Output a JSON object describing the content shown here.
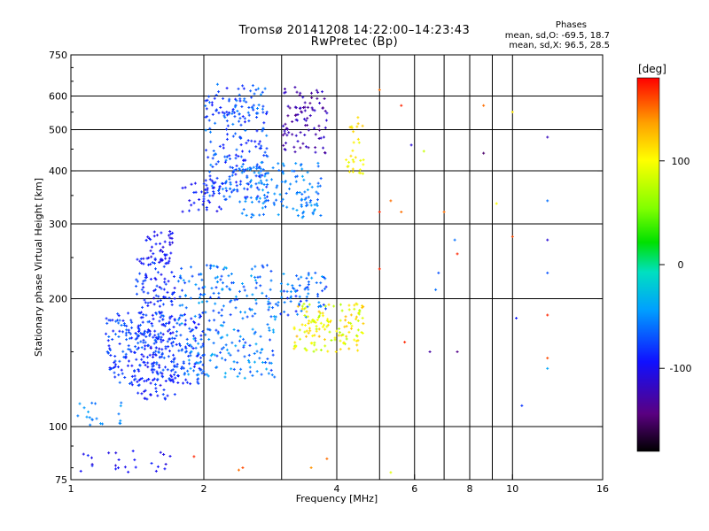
{
  "chart_data": {
    "type": "scatter",
    "title": "Tromsø 20141208 14:22:00–14:23:43",
    "subtitle": "RwPretec (Bp)",
    "phases": {
      "heading": "Phases",
      "line1": "mean, sd,O:  -69.5, 18.7",
      "line2": "mean, sd,X:  96.5, 28.5"
    },
    "xlabel": "Frequency [MHz]",
    "ylabel": "Stationary phase Virtual Height [km]",
    "x_scale": "log",
    "y_scale": "log",
    "xlim": [
      1,
      16
    ],
    "ylim": [
      75,
      750
    ],
    "x_ticks": [
      {
        "value": 1,
        "label": "1"
      },
      {
        "value": 2,
        "label": "2"
      },
      {
        "value": 4,
        "label": "4"
      },
      {
        "value": 6,
        "label": "6"
      },
      {
        "value": 8,
        "label": "8"
      },
      {
        "value": 10,
        "label": "10"
      },
      {
        "value": 16,
        "label": "16"
      }
    ],
    "x_major_grid": [
      2,
      4,
      6,
      8,
      10
    ],
    "x_minor_grid": [
      3,
      5,
      7,
      9
    ],
    "y_ticks": [
      {
        "value": 75,
        "label": "75"
      },
      {
        "value": 100,
        "label": "100"
      },
      {
        "value": 200,
        "label": "200"
      },
      {
        "value": 300,
        "label": "300"
      },
      {
        "value": 400,
        "label": "400"
      },
      {
        "value": 500,
        "label": "500"
      },
      {
        "value": 600,
        "label": "600"
      },
      {
        "value": 750,
        "label": "750"
      }
    ],
    "y_grid": [
      100,
      200,
      300,
      400,
      500,
      600
    ],
    "grid": true,
    "colorbar": {
      "label": "[deg]",
      "range": [
        -180,
        180
      ],
      "ticks": [
        {
          "value": 100,
          "label": "100"
        },
        {
          "value": 0,
          "label": "0"
        },
        {
          "value": -100,
          "label": "-100"
        }
      ],
      "colors": [
        "#000000",
        "#5a0080",
        "#1010ff",
        "#00a0ff",
        "#00e0c0",
        "#00e000",
        "#80ff00",
        "#ffff00",
        "#ffa000",
        "#ff0000"
      ]
    },
    "clusters": [
      {
        "freq": [
          1.48,
          1.7
        ],
        "height": [
          245,
          290
        ],
        "phase": [
          -110,
          -85
        ],
        "count": 40
      },
      {
        "freq": [
          1.4,
          1.72
        ],
        "height": [
          115,
          250
        ],
        "phase": [
          -105,
          -70
        ],
        "count": 220
      },
      {
        "freq": [
          1.2,
          2.0
        ],
        "height": [
          125,
          185
        ],
        "phase": [
          -95,
          -60
        ],
        "count": 260
      },
      {
        "freq": [
          1.75,
          2.9
        ],
        "height": [
          130,
          240
        ],
        "phase": [
          -80,
          -35
        ],
        "count": 260
      },
      {
        "freq": [
          2.9,
          3.8
        ],
        "height": [
          180,
          230
        ],
        "phase": [
          -90,
          -40
        ],
        "count": 70
      },
      {
        "freq": [
          3.2,
          4.6
        ],
        "height": [
          150,
          195
        ],
        "phase": [
          70,
          130
        ],
        "count": 140
      },
      {
        "freq": [
          2.0,
          2.8
        ],
        "height": [
          340,
          640
        ],
        "phase": [
          -95,
          -50
        ],
        "count": 240
      },
      {
        "freq": [
          2.4,
          3.7
        ],
        "height": [
          310,
          420
        ],
        "phase": [
          -70,
          -40
        ],
        "count": 140
      },
      {
        "freq": [
          3.0,
          3.8
        ],
        "height": [
          440,
          630
        ],
        "phase": [
          -140,
          -110
        ],
        "count": 90
      },
      {
        "freq": [
          1.78,
          2.2
        ],
        "height": [
          320,
          380
        ],
        "phase": [
          -105,
          -80
        ],
        "count": 40
      },
      {
        "freq": [
          4.2,
          4.6
        ],
        "height": [
          390,
          540
        ],
        "phase": [
          90,
          125
        ],
        "count": 30
      },
      {
        "freq": [
          1.02,
          1.3
        ],
        "height": [
          100,
          115
        ],
        "phase": [
          -70,
          -40
        ],
        "count": 20
      },
      {
        "freq": [
          1.05,
          1.7
        ],
        "height": [
          78,
          88
        ],
        "phase": [
          -110,
          -80
        ],
        "count": 25
      }
    ],
    "scattered": [
      {
        "freq": 5.0,
        "height": 620,
        "phase": 150
      },
      {
        "freq": 5.6,
        "height": 570,
        "phase": 170
      },
      {
        "freq": 8.6,
        "height": 570,
        "phase": 150
      },
      {
        "freq": 10.0,
        "height": 550,
        "phase": 110
      },
      {
        "freq": 5.9,
        "height": 460,
        "phase": -110
      },
      {
        "freq": 6.3,
        "height": 445,
        "phase": 80
      },
      {
        "freq": 8.6,
        "height": 440,
        "phase": -150
      },
      {
        "freq": 12.0,
        "height": 480,
        "phase": -120
      },
      {
        "freq": 5.3,
        "height": 340,
        "phase": 150
      },
      {
        "freq": 5.0,
        "height": 320,
        "phase": 170
      },
      {
        "freq": 5.6,
        "height": 320,
        "phase": 150
      },
      {
        "freq": 7.0,
        "height": 320,
        "phase": 150
      },
      {
        "freq": 9.2,
        "height": 335,
        "phase": 100
      },
      {
        "freq": 12.0,
        "height": 340,
        "phase": -60
      },
      {
        "freq": 7.4,
        "height": 275,
        "phase": -60
      },
      {
        "freq": 7.5,
        "height": 255,
        "phase": 170
      },
      {
        "freq": 10.0,
        "height": 280,
        "phase": 160
      },
      {
        "freq": 12.0,
        "height": 275,
        "phase": -110
      },
      {
        "freq": 5.0,
        "height": 235,
        "phase": 170
      },
      {
        "freq": 6.8,
        "height": 230,
        "phase": -70
      },
      {
        "freq": 12.0,
        "height": 230,
        "phase": -70
      },
      {
        "freq": 6.7,
        "height": 210,
        "phase": -60
      },
      {
        "freq": 10.2,
        "height": 180,
        "phase": -90
      },
      {
        "freq": 12.0,
        "height": 183,
        "phase": 170
      },
      {
        "freq": 5.7,
        "height": 158,
        "phase": 170
      },
      {
        "freq": 6.5,
        "height": 150,
        "phase": -130
      },
      {
        "freq": 7.5,
        "height": 150,
        "phase": -140
      },
      {
        "freq": 12.0,
        "height": 145,
        "phase": 160
      },
      {
        "freq": 12.0,
        "height": 137,
        "phase": -40
      },
      {
        "freq": 10.5,
        "height": 112,
        "phase": -80
      },
      {
        "freq": 2.4,
        "height": 79,
        "phase": 150
      },
      {
        "freq": 2.45,
        "height": 80,
        "phase": 160
      },
      {
        "freq": 1.9,
        "height": 85,
        "phase": 170
      },
      {
        "freq": 3.8,
        "height": 84,
        "phase": 150
      },
      {
        "freq": 3.5,
        "height": 80,
        "phase": 140
      },
      {
        "freq": 5.3,
        "height": 78,
        "phase": 90
      }
    ]
  }
}
